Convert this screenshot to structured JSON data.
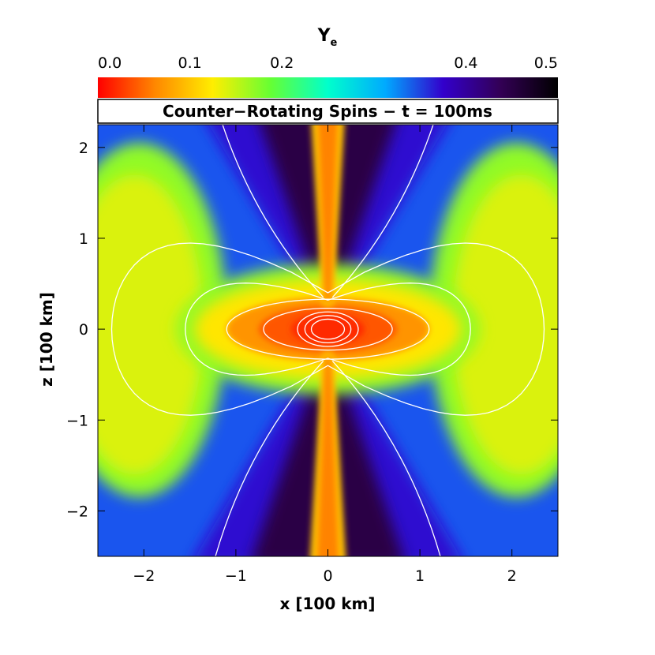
{
  "chart_data": {
    "type": "heatmap",
    "title": "Counter−Rotating Spins − t = 100ms",
    "xlabel": "x [100 km]",
    "ylabel": "z [100 km]",
    "xlim": [
      -2.5,
      2.5
    ],
    "ylim": [
      -2.5,
      2.25
    ],
    "x_ticks": [
      -2,
      -1,
      0,
      1,
      2
    ],
    "x_tick_labels": [
      "−2",
      "−1",
      "0",
      "1",
      "2"
    ],
    "y_ticks": [
      -2,
      -1,
      0,
      1,
      2
    ],
    "y_tick_labels": [
      "−2",
      "−1",
      "0",
      "1",
      "2"
    ],
    "colorbar": {
      "label": "Y",
      "label_subscript": "e",
      "ticks": [
        0.0,
        0.1,
        0.2,
        0.4,
        0.5
      ],
      "tick_labels": [
        "0.0",
        "0.1",
        "0.2",
        "0.4",
        "0.5"
      ],
      "colors": [
        "#ff0000",
        "#ff8800",
        "#ffee00",
        "#66ff33",
        "#00ffcc",
        "#00aaff",
        "#3300cc",
        "#330055",
        "#000000"
      ]
    },
    "field_features": {
      "core_value": 0.02,
      "torus_value": 0.12,
      "lobe_value": 0.14,
      "polar_jet_value": 0.06,
      "cone_value": 0.45,
      "background_value": 0.3
    },
    "contour_color": "#ffffff"
  }
}
